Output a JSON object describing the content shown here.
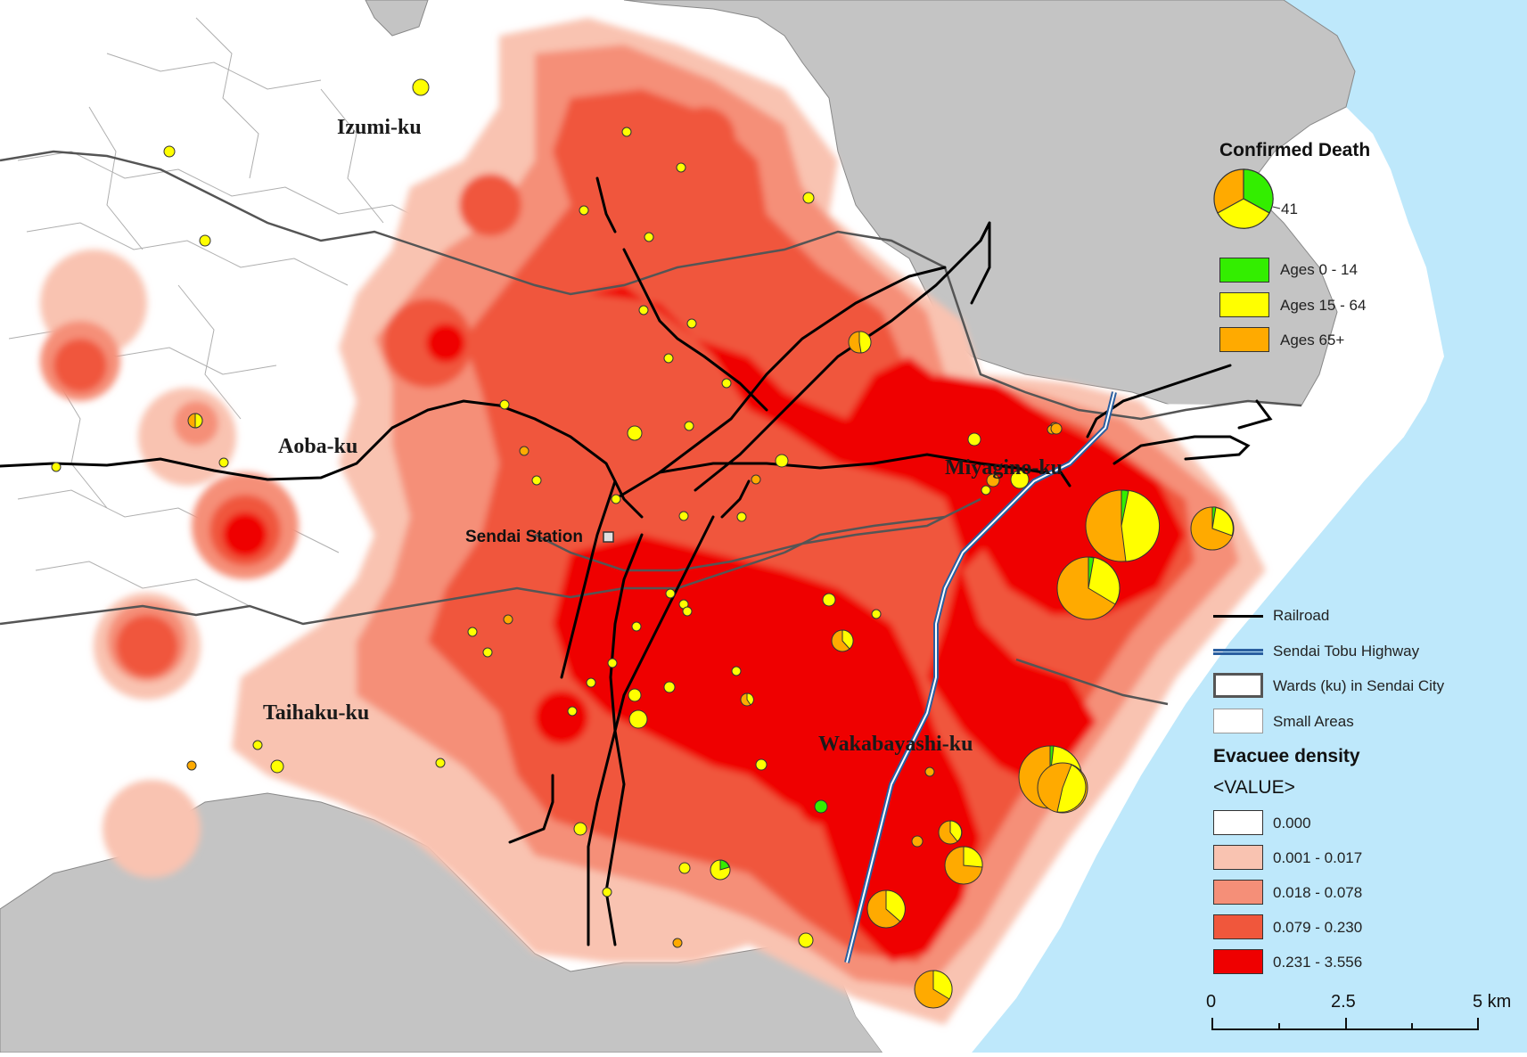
{
  "wards": {
    "izumi": "Izumi-ku",
    "aoba": "Aoba-ku",
    "miyagino": "Miyagino-ku",
    "taihaku": "Taihaku-ku",
    "wakabayashi": "Wakabayashi-ku"
  },
  "places": {
    "sendai_station": "Sendai Station"
  },
  "legend": {
    "confirmed_death": {
      "title": "Confirmed Death",
      "example_value": "41",
      "items": [
        {
          "label": "Ages 0 - 14",
          "color": "#33ee00"
        },
        {
          "label": "Ages 15 - 64",
          "color": "#ffff00"
        },
        {
          "label": "Ages 65+",
          "color": "#ffaa00"
        }
      ]
    },
    "lines": {
      "railroad": "Railroad",
      "highway": "Sendai Tobu Highway",
      "wards": "Wards (ku) in Sendai City",
      "small_areas": "Small Areas"
    },
    "density": {
      "title": "Evacuee density",
      "subtitle": "<VALUE>",
      "classes": [
        {
          "label": "0.000",
          "color": "#ffffff"
        },
        {
          "label": "0.001 - 0.017",
          "color": "#f9c3b1"
        },
        {
          "label": "0.018 - 0.078",
          "color": "#f58f78"
        },
        {
          "label": "0.079 - 0.230",
          "color": "#f0573c"
        },
        {
          "label": "0.231 - 3.556",
          "color": "#ef0000"
        }
      ]
    },
    "scale": {
      "ticks": [
        "0",
        "2.5",
        "5 km"
      ]
    }
  },
  "colors": {
    "sea": "#bee8fb",
    "outside_city": "#c4c4c4",
    "railroad": "#000000",
    "highway": "#2a5fa0"
  }
}
